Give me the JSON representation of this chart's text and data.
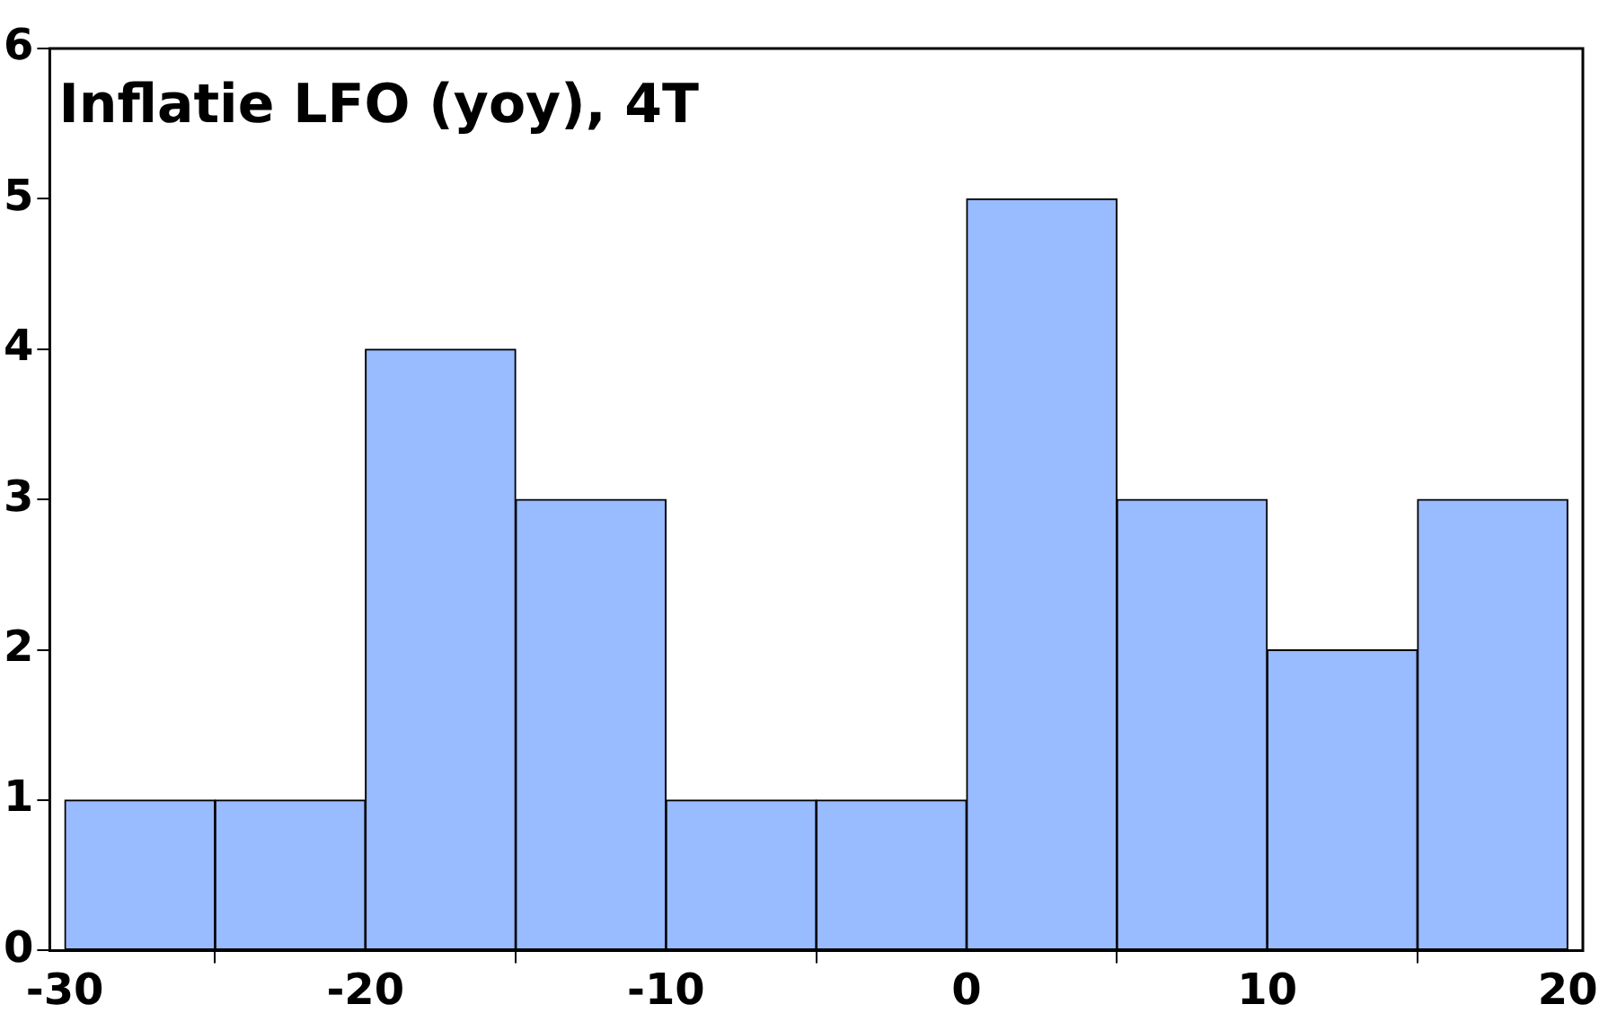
{
  "chart_data": {
    "type": "histogram",
    "title": "Inflatie LFO (yoy), 4T",
    "bins": [
      -30,
      -25,
      -20,
      -15,
      -10,
      -5,
      0,
      5,
      10,
      15,
      20
    ],
    "values": [
      1,
      1,
      4,
      3,
      1,
      1,
      5,
      3,
      2,
      3
    ],
    "color": "#99bbff",
    "xlim": [
      -30.5,
      20.5
    ],
    "xticks": [
      -30,
      -20,
      -10,
      0,
      10,
      20
    ],
    "ylim": [
      0,
      6
    ],
    "yticks": [
      0,
      1,
      2,
      3,
      4,
      5,
      6
    ],
    "grid": false,
    "legend": false
  }
}
